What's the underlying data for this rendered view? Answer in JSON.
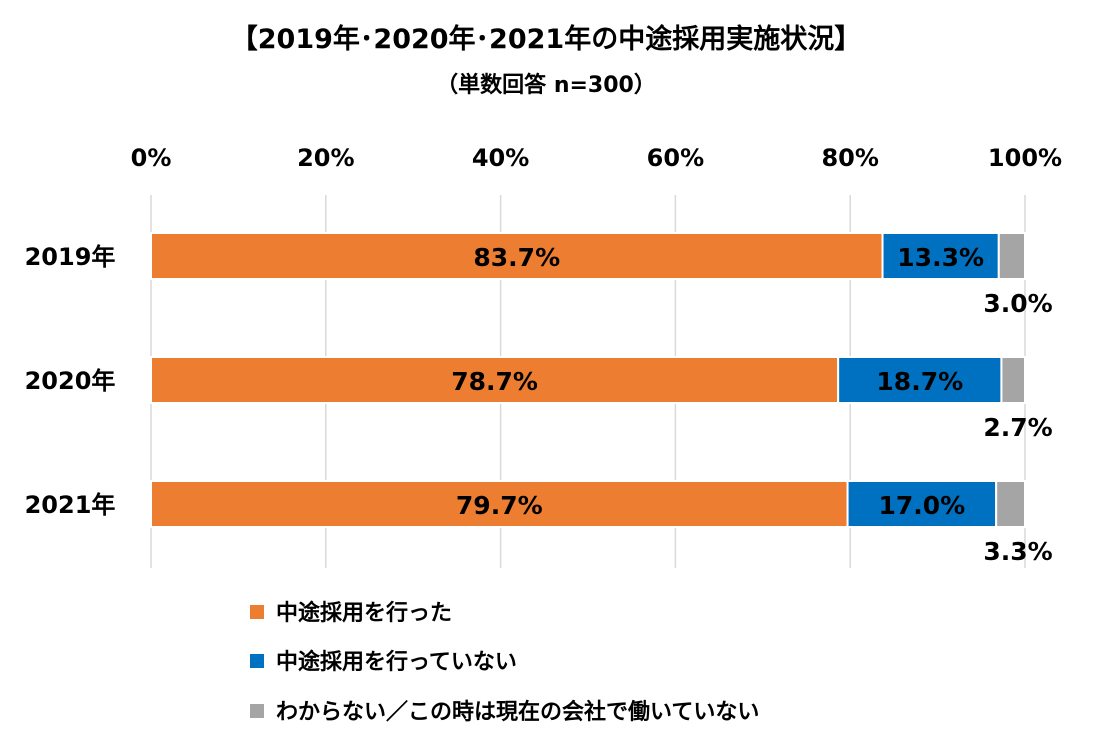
{
  "chart_data": {
    "type": "bar",
    "orientation": "horizontal",
    "stacked": true,
    "title": "【2019年･2020年･2021年の中途採用実施状況】",
    "subtitle": "（単数回答 n=300）",
    "xlim": [
      0,
      100
    ],
    "x_ticks": [
      "0%",
      "20%",
      "40%",
      "60%",
      "80%",
      "100%"
    ],
    "x_tick_values": [
      0,
      20,
      40,
      60,
      80,
      100
    ],
    "grid": true,
    "legend_position": "bottom",
    "categories": [
      "2019年",
      "2020年",
      "2021年"
    ],
    "series": [
      {
        "name": "中途採用を行った",
        "color": "#ED7D31",
        "values": [
          83.7,
          78.7,
          79.7
        ],
        "labels": [
          "83.7%",
          "78.7%",
          "79.7%"
        ]
      },
      {
        "name": "中途採用を行っていない",
        "color": "#0070C0",
        "values": [
          13.3,
          18.7,
          17.0
        ],
        "labels": [
          "13.3%",
          "18.7%",
          "17.0%"
        ]
      },
      {
        "name": "わからない／この時は現在の会社で働いていない",
        "color": "#A5A5A5",
        "values": [
          3.0,
          2.7,
          3.3
        ],
        "labels": [
          "3.0%",
          "2.7%",
          "3.3%"
        ]
      }
    ]
  }
}
